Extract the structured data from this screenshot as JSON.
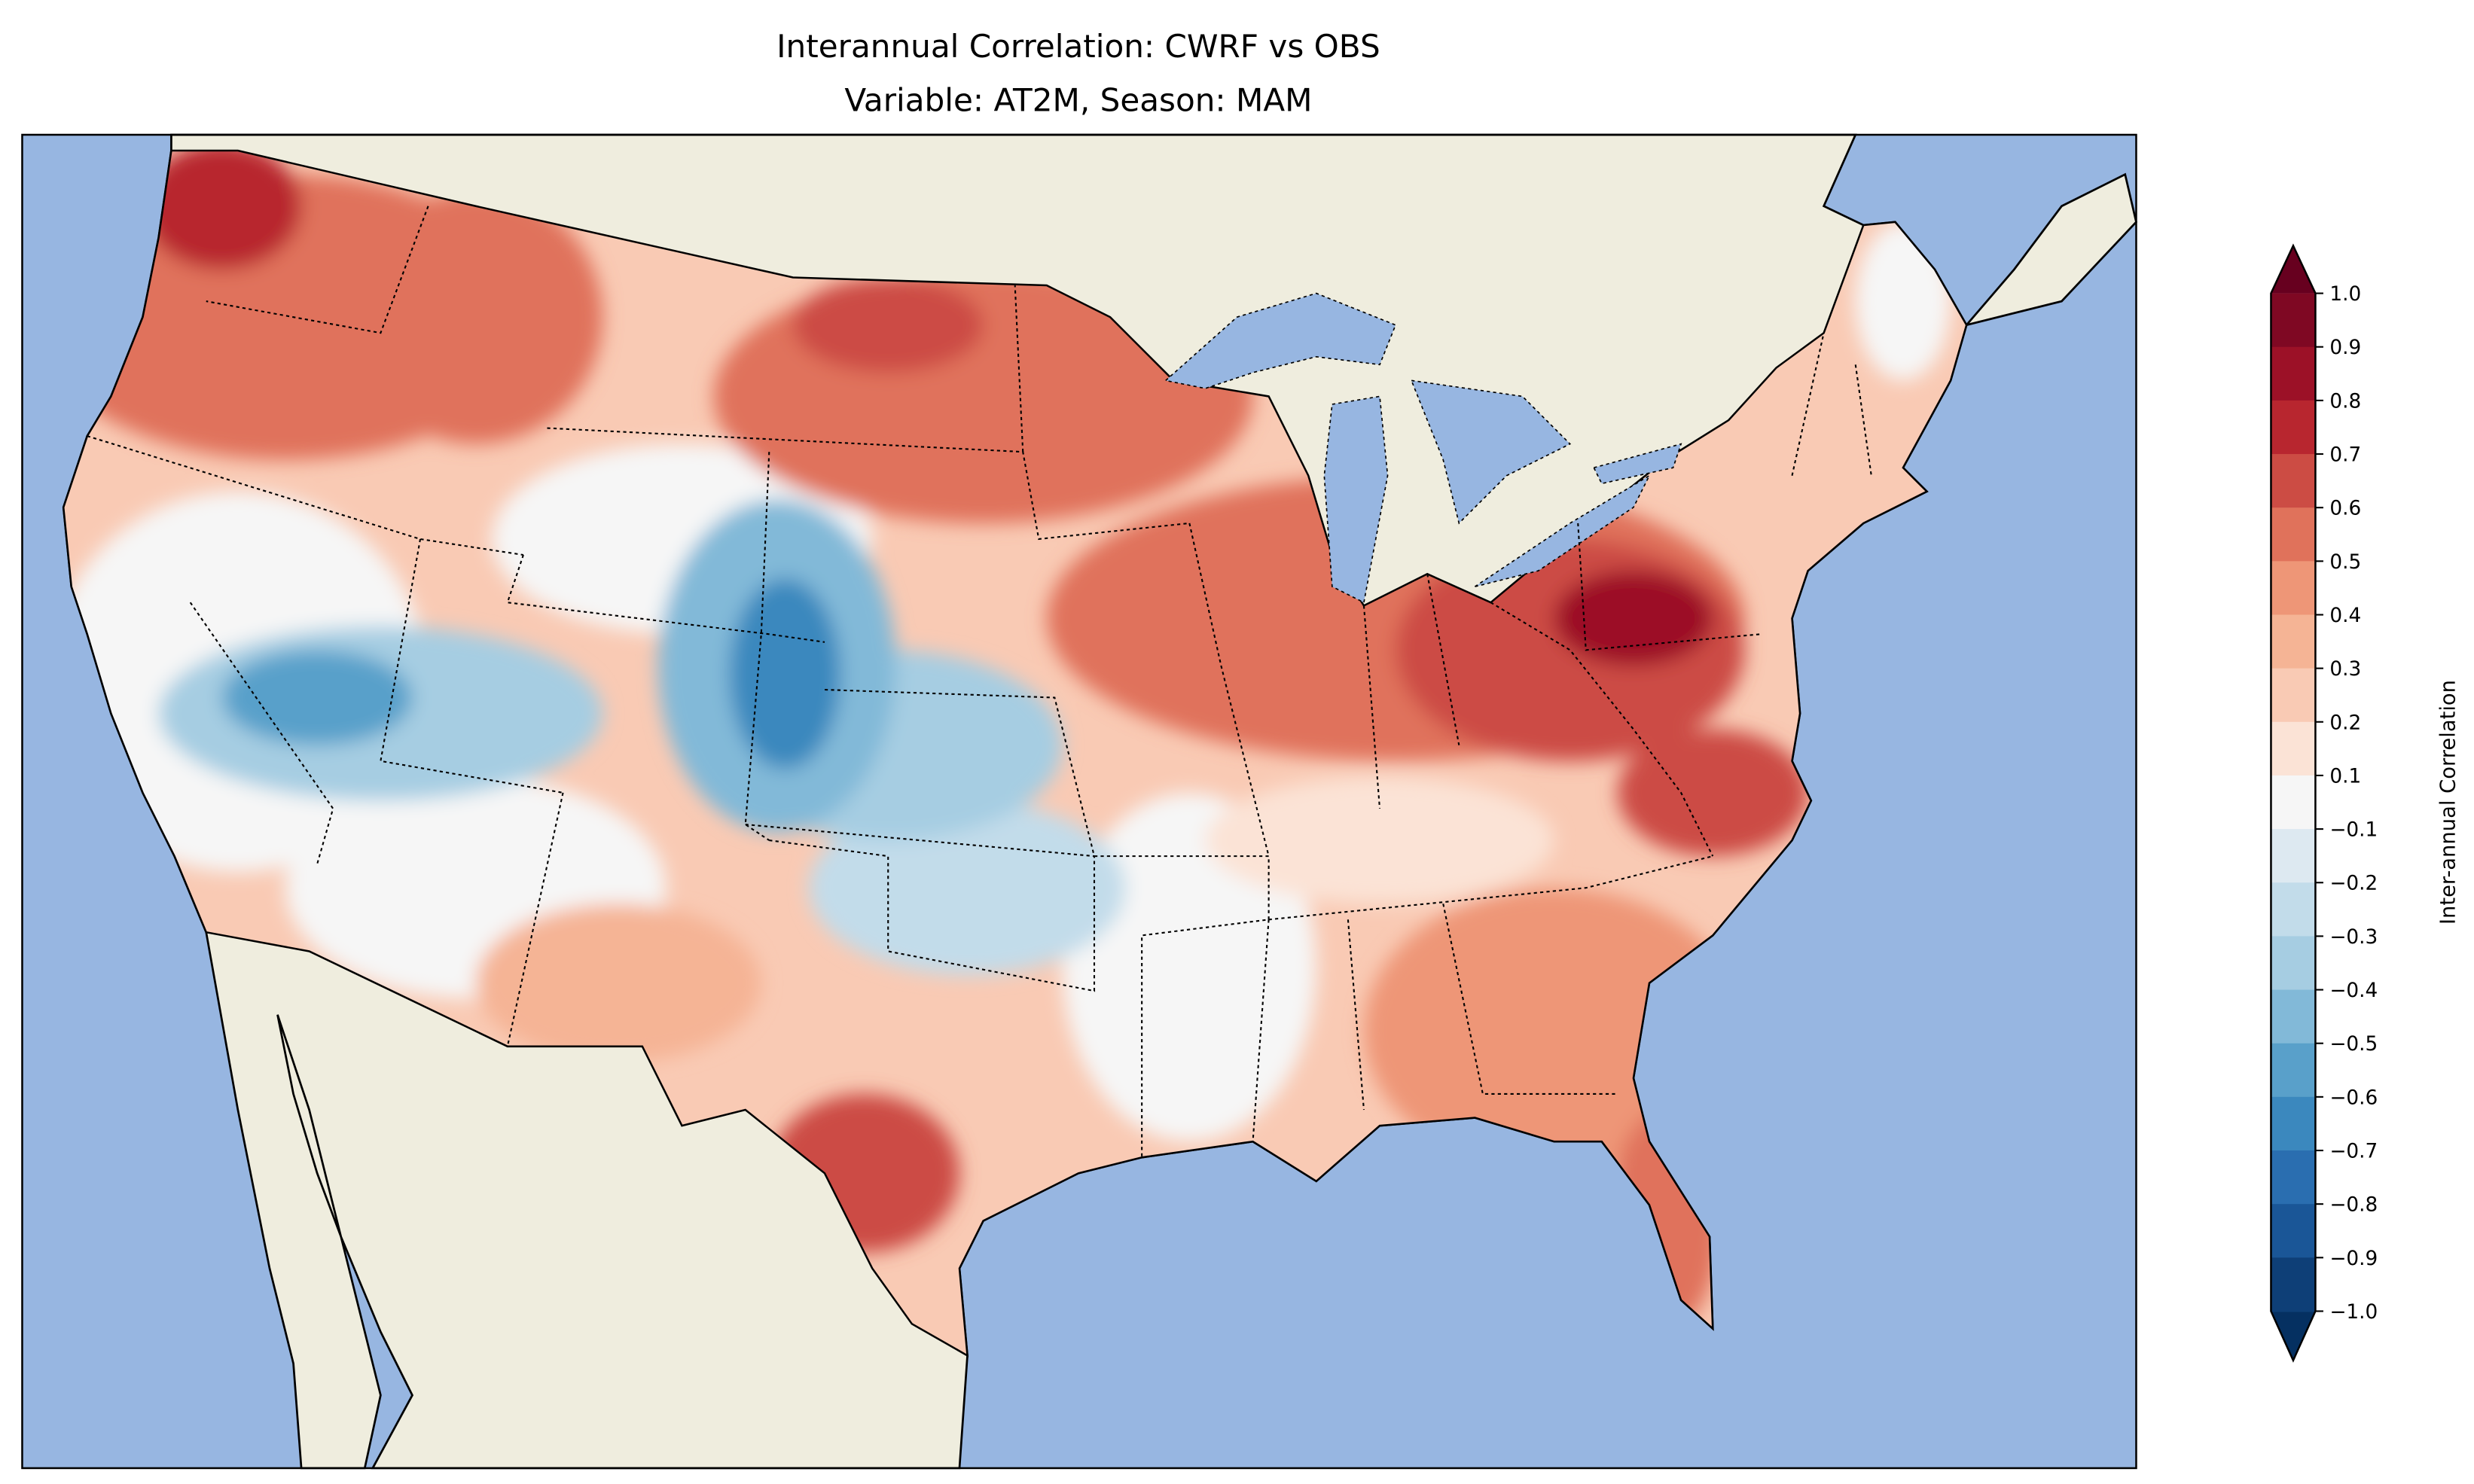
{
  "title": {
    "line1": "Interannual Correlation: CWRF vs OBS",
    "line2": "Variable: AT2M, Season: MAM"
  },
  "colors": {
    "ocean": "#97b6e1",
    "land": "#efedde"
  },
  "chart_data": {
    "type": "heatmap",
    "subtype": "filled contour map",
    "title": "Interannual Correlation: CWRF vs OBS\nVariable: AT2M, Season: MAM",
    "region": "Contiguous United States",
    "variable": "AT2M",
    "season": "MAM",
    "colorbar": {
      "label": "Inter-annual Correlation",
      "extend": "both",
      "ticks": [
        "1.0",
        "0.9",
        "0.8",
        "0.7",
        "0.6",
        "0.5",
        "0.4",
        "0.3",
        "0.2",
        "0.1",
        "−0.1",
        "−0.2",
        "−0.3",
        "−0.4",
        "−0.5",
        "−0.6",
        "−0.7",
        "−0.8",
        "−0.9",
        "−1.0"
      ],
      "levels": [
        1.0,
        0.9,
        0.8,
        0.7,
        0.6,
        0.5,
        0.4,
        0.3,
        0.2,
        0.1,
        -0.1,
        -0.2,
        -0.3,
        -0.4,
        -0.5,
        -0.6,
        -0.7,
        -0.8,
        -0.9,
        -1.0
      ],
      "band_colors": [
        "#7f0823",
        "#9c1127",
        "#b8262f",
        "#cc4c44",
        "#e0725b",
        "#ee9677",
        "#f5b495",
        "#f9cab4",
        "#fbe3d6",
        "#f6f6f6",
        "#dde9f1",
        "#c2dcea",
        "#a6cde2",
        "#82b9d8",
        "#59a0ca",
        "#3b88be",
        "#2a6eb0",
        "#1a5697",
        "#0e3f77"
      ],
      "extend_high_color": "#67001f",
      "extend_low_color": "#053061",
      "range": [
        -1.0,
        1.0
      ]
    },
    "regional_patterns": [
      {
        "region": "Pacific Northwest",
        "approx_value": 0.75
      },
      {
        "region": "Northern Plains",
        "approx_value": 0.65
      },
      {
        "region": "Ohio Valley / Mid-Atlantic",
        "approx_value": 0.8
      },
      {
        "region": "Colorado",
        "approx_value": -0.65
      },
      {
        "region": "Great Basin",
        "approx_value": -0.55
      },
      {
        "region": "Southwest desert",
        "approx_value": 0.15
      },
      {
        "region": "Oklahoma / Kansas",
        "approx_value": -0.3
      },
      {
        "region": "Central Texas",
        "approx_value": 0.6
      },
      {
        "region": "Southeast / Florida",
        "approx_value": 0.45
      },
      {
        "region": "Lower Mississippi",
        "approx_value": 0.0
      }
    ]
  }
}
